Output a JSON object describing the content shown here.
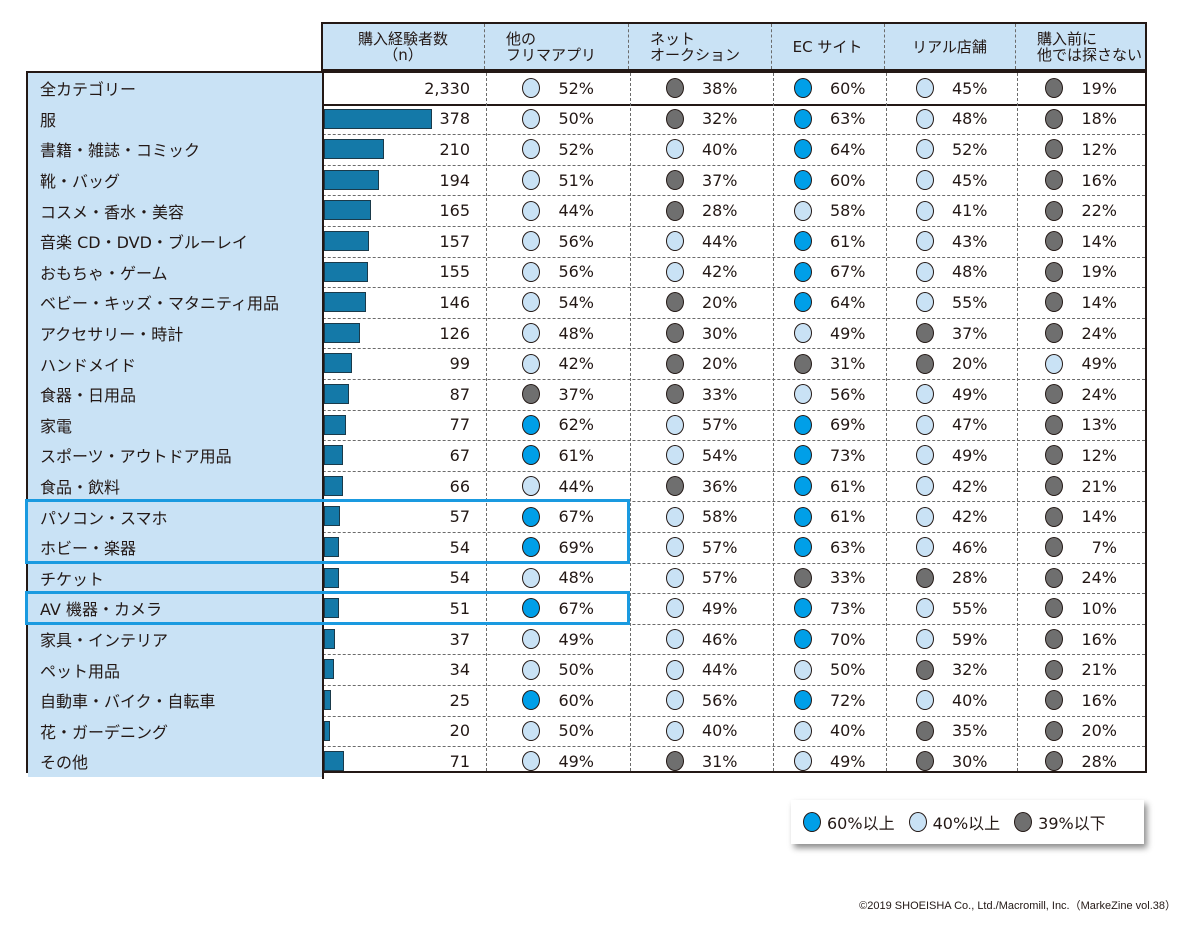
{
  "chart_data": {
    "type": "table",
    "title": "",
    "columns": [
      "購入経験者数（n）",
      "他のフリマアプリ",
      "ネットオークション",
      "EC サイト",
      "リアル店舗",
      "購入前に他では探さない"
    ],
    "column_headers": [
      {
        "line1": "購入経験者数",
        "line2": "（n）"
      },
      {
        "line1": "他の",
        "line2": "フリマアプリ"
      },
      {
        "line1": "ネット",
        "line2": "オークション"
      },
      {
        "line1": "EC サイト",
        "line2": ""
      },
      {
        "line1": "リアル店舗",
        "line2": ""
      },
      {
        "line1": "購入前に",
        "line2": "他では探さない"
      }
    ],
    "rows": [
      {
        "category": "全カテゴリー",
        "n": 2330,
        "n_label": "2,330",
        "values": [
          52,
          38,
          60,
          45,
          19
        ],
        "highlight": false
      },
      {
        "category": "服",
        "n": 378,
        "n_label": "378",
        "values": [
          50,
          32,
          63,
          48,
          18
        ],
        "highlight": false
      },
      {
        "category": "書籍・雑誌・コミック",
        "n": 210,
        "n_label": "210",
        "values": [
          52,
          40,
          64,
          52,
          12
        ],
        "highlight": false
      },
      {
        "category": "靴・バッグ",
        "n": 194,
        "n_label": "194",
        "values": [
          51,
          37,
          60,
          45,
          16
        ],
        "highlight": false
      },
      {
        "category": "コスメ・香水・美容",
        "n": 165,
        "n_label": "165",
        "values": [
          44,
          28,
          58,
          41,
          22
        ],
        "highlight": false
      },
      {
        "category": "音楽 CD・DVD・ブルーレイ",
        "n": 157,
        "n_label": "157",
        "values": [
          56,
          44,
          61,
          43,
          14
        ],
        "highlight": false
      },
      {
        "category": "おもちゃ・ゲーム",
        "n": 155,
        "n_label": "155",
        "values": [
          56,
          42,
          67,
          48,
          19
        ],
        "highlight": false
      },
      {
        "category": "ベビー・キッズ・マタニティ用品",
        "n": 146,
        "n_label": "146",
        "values": [
          54,
          20,
          64,
          55,
          14
        ],
        "highlight": false
      },
      {
        "category": "アクセサリー・時計",
        "n": 126,
        "n_label": "126",
        "values": [
          48,
          30,
          49,
          37,
          24
        ],
        "highlight": false
      },
      {
        "category": "ハンドメイド",
        "n": 99,
        "n_label": "99",
        "values": [
          42,
          20,
          31,
          20,
          49
        ],
        "highlight": false
      },
      {
        "category": "食器・日用品",
        "n": 87,
        "n_label": "87",
        "values": [
          37,
          33,
          56,
          49,
          24
        ],
        "highlight": false
      },
      {
        "category": "家電",
        "n": 77,
        "n_label": "77",
        "values": [
          62,
          57,
          69,
          47,
          13
        ],
        "highlight": false
      },
      {
        "category": "スポーツ・アウトドア用品",
        "n": 67,
        "n_label": "67",
        "values": [
          61,
          54,
          73,
          49,
          12
        ],
        "highlight": false
      },
      {
        "category": "食品・飲料",
        "n": 66,
        "n_label": "66",
        "values": [
          44,
          36,
          61,
          42,
          21
        ],
        "highlight": false
      },
      {
        "category": "パソコン・スマホ",
        "n": 57,
        "n_label": "57",
        "values": [
          67,
          58,
          61,
          42,
          14
        ],
        "highlight": true
      },
      {
        "category": "ホビー・楽器",
        "n": 54,
        "n_label": "54",
        "values": [
          69,
          57,
          63,
          46,
          7
        ],
        "highlight": true
      },
      {
        "category": "チケット",
        "n": 54,
        "n_label": "54",
        "values": [
          48,
          57,
          33,
          28,
          24
        ],
        "highlight": false
      },
      {
        "category": "AV 機器・カメラ",
        "n": 51,
        "n_label": "51",
        "values": [
          67,
          49,
          73,
          55,
          10
        ],
        "highlight": true
      },
      {
        "category": "家具・インテリア",
        "n": 37,
        "n_label": "37",
        "values": [
          49,
          46,
          70,
          59,
          16
        ],
        "highlight": false
      },
      {
        "category": "ペット用品",
        "n": 34,
        "n_label": "34",
        "values": [
          50,
          44,
          50,
          32,
          21
        ],
        "highlight": false
      },
      {
        "category": "自動車・バイク・自転車",
        "n": 25,
        "n_label": "25",
        "values": [
          60,
          56,
          72,
          40,
          16
        ],
        "highlight": false
      },
      {
        "category": "花・ガーデニング",
        "n": 20,
        "n_label": "20",
        "values": [
          50,
          40,
          40,
          35,
          20
        ],
        "highlight": false
      },
      {
        "category": "その他",
        "n": 71,
        "n_label": "71",
        "values": [
          49,
          31,
          49,
          30,
          28
        ],
        "highlight": false
      }
    ],
    "legend": [
      {
        "label": "60%以上",
        "min": 60,
        "color": "#009fe8"
      },
      {
        "label": "40%以上",
        "min": 40,
        "color": "#c9e2f5"
      },
      {
        "label": "39%以下",
        "min": 0,
        "color": "#6f6f6f"
      }
    ],
    "bar_color": "#1479a8",
    "highlight_color": "#1a9ae0",
    "header_bg": "#c9e2f5"
  },
  "footer": {
    "copyright": "©2019 SHOEISHA Co., Ltd./Macromill, Inc.（MarkeZine vol.38）"
  }
}
